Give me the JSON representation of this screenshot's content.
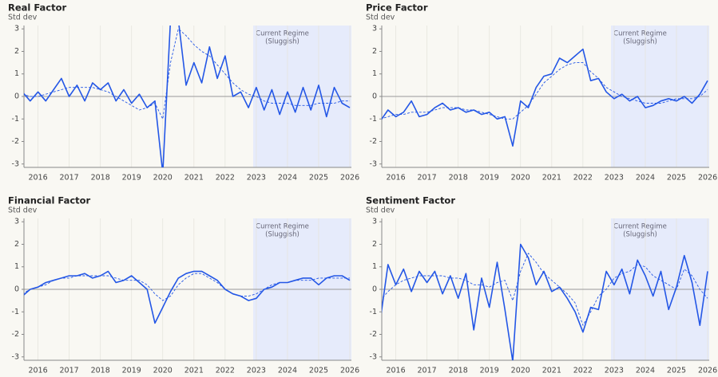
{
  "chart_data": [
    {
      "type": "line",
      "title": "Real Factor",
      "y_label": "Std dev",
      "x": [
        2015.5,
        2015.75,
        2016,
        2016.25,
        2016.5,
        2016.75,
        2017,
        2017.25,
        2017.5,
        2017.75,
        2018,
        2018.25,
        2018.5,
        2018.75,
        2019,
        2019.25,
        2019.5,
        2019.75,
        2020,
        2020.25,
        2020.5,
        2020.75,
        2021,
        2021.25,
        2021.5,
        2021.75,
        2022,
        2022.25,
        2022.5,
        2022.75,
        2023,
        2023.25,
        2023.5,
        2023.75,
        2024,
        2024.25,
        2024.5,
        2024.75,
        2025,
        2025.25,
        2025.5,
        2025.75,
        2026
      ],
      "series": [
        {
          "color": "#2457e6",
          "line_style": "solid",
          "values": [
            0.2,
            -0.2,
            0.2,
            -0.2,
            0.3,
            0.8,
            0.0,
            0.5,
            -0.2,
            0.6,
            0.3,
            0.6,
            -0.2,
            0.3,
            -0.3,
            0.1,
            -0.5,
            -0.2,
            -3.4,
            3.4,
            3.4,
            0.5,
            1.5,
            0.6,
            2.2,
            0.8,
            1.8,
            0.0,
            0.2,
            -0.5,
            0.4,
            -0.6,
            0.3,
            -0.8,
            0.2,
            -0.7,
            0.4,
            -0.6,
            0.5,
            -0.9,
            0.4,
            -0.3,
            -0.5
          ]
        },
        {
          "color": "#2457e6",
          "line_style": "dashed",
          "values": [
            0.1,
            0.0,
            0.0,
            0.1,
            0.2,
            0.3,
            0.4,
            0.4,
            0.4,
            0.4,
            0.3,
            0.2,
            0.0,
            -0.2,
            -0.4,
            -0.6,
            -0.5,
            -0.3,
            -1.0,
            1.5,
            3.0,
            2.7,
            2.3,
            2.0,
            1.8,
            1.4,
            1.0,
            0.6,
            0.3,
            0.1,
            0.0,
            -0.2,
            -0.3,
            -0.3,
            -0.3,
            -0.4,
            -0.4,
            -0.4,
            -0.3,
            -0.3,
            -0.3,
            -0.2,
            -0.2
          ]
        }
      ],
      "xlim": [
        2015.55,
        2026.05
      ],
      "xticks": [
        2016,
        2017,
        2018,
        2019,
        2020,
        2021,
        2022,
        2023,
        2024,
        2025,
        2026
      ],
      "ylim": [
        -3.15,
        3.15
      ],
      "yticks": [
        -3,
        -2,
        -1,
        0,
        1,
        2,
        3
      ],
      "hline": 0,
      "region": {
        "xlim": [
          2022.9,
          2026.05
        ],
        "color": "#e6ebfb",
        "label": [
          "Current Regime",
          "(Sluggish)"
        ]
      }
    },
    {
      "type": "line",
      "title": "Price Factor",
      "y_label": "Std dev",
      "x": [
        2015.5,
        2015.75,
        2016,
        2016.25,
        2016.5,
        2016.75,
        2017,
        2017.25,
        2017.5,
        2017.75,
        2018,
        2018.25,
        2018.5,
        2018.75,
        2019,
        2019.25,
        2019.5,
        2019.75,
        2020,
        2020.25,
        2020.5,
        2020.75,
        2021,
        2021.25,
        2021.5,
        2021.75,
        2022,
        2022.25,
        2022.5,
        2022.75,
        2023,
        2023.25,
        2023.5,
        2023.75,
        2024,
        2024.25,
        2024.5,
        2024.75,
        2025,
        2025.25,
        2025.5,
        2025.75,
        2026
      ],
      "series": [
        {
          "color": "#2457e6",
          "line_style": "solid",
          "values": [
            -1.1,
            -0.6,
            -0.9,
            -0.7,
            -0.2,
            -0.9,
            -0.8,
            -0.5,
            -0.3,
            -0.6,
            -0.5,
            -0.7,
            -0.6,
            -0.8,
            -0.7,
            -1.0,
            -0.9,
            -2.2,
            -0.2,
            -0.5,
            0.4,
            0.9,
            1.0,
            1.7,
            1.5,
            1.8,
            2.1,
            0.7,
            0.8,
            0.2,
            -0.1,
            0.1,
            -0.2,
            0.0,
            -0.5,
            -0.4,
            -0.2,
            -0.1,
            -0.2,
            0.0,
            -0.3,
            0.1,
            0.7
          ]
        },
        {
          "color": "#2457e6",
          "line_style": "dashed",
          "values": [
            -1.0,
            -0.9,
            -0.8,
            -0.8,
            -0.7,
            -0.7,
            -0.7,
            -0.6,
            -0.5,
            -0.5,
            -0.5,
            -0.6,
            -0.6,
            -0.7,
            -0.8,
            -0.9,
            -1.0,
            -1.0,
            -0.7,
            -0.4,
            0.1,
            0.6,
            0.9,
            1.2,
            1.4,
            1.5,
            1.5,
            1.1,
            0.8,
            0.4,
            0.2,
            0.0,
            -0.1,
            -0.2,
            -0.3,
            -0.3,
            -0.3,
            -0.2,
            -0.1,
            -0.1,
            -0.1,
            0.0,
            0.3
          ]
        }
      ],
      "xlim": [
        2015.55,
        2026.05
      ],
      "xticks": [
        2016,
        2017,
        2018,
        2019,
        2020,
        2021,
        2022,
        2023,
        2024,
        2025,
        2026
      ],
      "ylim": [
        -3.15,
        3.15
      ],
      "yticks": [
        -3,
        -2,
        -1,
        0,
        1,
        2,
        3
      ],
      "hline": 0,
      "region": {
        "xlim": [
          2022.9,
          2026.05
        ],
        "color": "#e6ebfb",
        "label": [
          "Current Regime",
          "(Sluggish)"
        ]
      }
    },
    {
      "type": "line",
      "title": "Financial Factor",
      "y_label": "Std dev",
      "x": [
        2015.5,
        2015.75,
        2016,
        2016.25,
        2016.5,
        2016.75,
        2017,
        2017.25,
        2017.5,
        2017.75,
        2018,
        2018.25,
        2018.5,
        2018.75,
        2019,
        2019.25,
        2019.5,
        2019.75,
        2020,
        2020.25,
        2020.5,
        2020.75,
        2021,
        2021.25,
        2021.5,
        2021.75,
        2022,
        2022.25,
        2022.5,
        2022.75,
        2023,
        2023.25,
        2023.5,
        2023.75,
        2024,
        2024.25,
        2024.5,
        2024.75,
        2025,
        2025.25,
        2025.5,
        2025.75,
        2026
      ],
      "series": [
        {
          "color": "#2457e6",
          "line_style": "solid",
          "values": [
            -0.3,
            0.0,
            0.1,
            0.3,
            0.4,
            0.5,
            0.6,
            0.6,
            0.7,
            0.5,
            0.6,
            0.8,
            0.3,
            0.4,
            0.6,
            0.3,
            0.0,
            -1.5,
            -0.8,
            -0.1,
            0.5,
            0.7,
            0.8,
            0.8,
            0.6,
            0.4,
            0.0,
            -0.2,
            -0.3,
            -0.5,
            -0.4,
            0.0,
            0.1,
            0.3,
            0.3,
            0.4,
            0.5,
            0.5,
            0.2,
            0.5,
            0.6,
            0.6,
            0.4
          ]
        },
        {
          "color": "#2457e6",
          "line_style": "dashed",
          "values": [
            -0.2,
            0.0,
            0.1,
            0.2,
            0.4,
            0.5,
            0.5,
            0.6,
            0.6,
            0.6,
            0.6,
            0.6,
            0.5,
            0.4,
            0.4,
            0.4,
            0.2,
            -0.2,
            -0.5,
            -0.3,
            0.2,
            0.5,
            0.7,
            0.7,
            0.5,
            0.3,
            0.0,
            -0.2,
            -0.3,
            -0.3,
            -0.2,
            0.0,
            0.2,
            0.3,
            0.3,
            0.4,
            0.4,
            0.4,
            0.5,
            0.5,
            0.5,
            0.5,
            0.5
          ]
        }
      ],
      "xlim": [
        2015.55,
        2026.05
      ],
      "xticks": [
        2016,
        2017,
        2018,
        2019,
        2020,
        2021,
        2022,
        2023,
        2024,
        2025,
        2026
      ],
      "ylim": [
        -3.15,
        3.15
      ],
      "yticks": [
        -3,
        -2,
        -1,
        0,
        1,
        2,
        3
      ],
      "hline": 0,
      "region": {
        "xlim": [
          2022.9,
          2026.05
        ],
        "color": "#e6ebfb",
        "label": [
          "Current Regime",
          "(Sluggish)"
        ]
      }
    },
    {
      "type": "line",
      "title": "Sentiment Factor",
      "y_label": "Std dev",
      "x": [
        2015.5,
        2015.75,
        2016,
        2016.25,
        2016.5,
        2016.75,
        2017,
        2017.25,
        2017.5,
        2017.75,
        2018,
        2018.25,
        2018.5,
        2018.75,
        2019,
        2019.25,
        2019.5,
        2019.75,
        2020,
        2020.25,
        2020.5,
        2020.75,
        2021,
        2021.25,
        2021.5,
        2021.75,
        2022,
        2022.25,
        2022.5,
        2022.75,
        2023,
        2023.25,
        2023.5,
        2023.75,
        2024,
        2024.25,
        2024.5,
        2024.75,
        2025,
        2025.25,
        2025.5,
        2025.75,
        2026
      ],
      "series": [
        {
          "color": "#2457e6",
          "line_style": "solid",
          "values": [
            -1.4,
            1.1,
            0.2,
            0.9,
            -0.1,
            0.8,
            0.3,
            0.8,
            -0.2,
            0.6,
            -0.4,
            0.7,
            -1.8,
            0.5,
            -0.8,
            1.2,
            -0.9,
            -3.2,
            2.0,
            1.4,
            0.2,
            0.8,
            -0.1,
            0.1,
            -0.4,
            -1.0,
            -1.9,
            -0.8,
            -0.9,
            0.8,
            0.2,
            0.9,
            -0.2,
            1.3,
            0.6,
            -0.3,
            0.8,
            -0.9,
            0.1,
            1.5,
            0.3,
            -1.6,
            0.8
          ]
        },
        {
          "color": "#2457e6",
          "line_style": "dashed",
          "values": [
            -0.5,
            -0.1,
            0.2,
            0.4,
            0.5,
            0.6,
            0.6,
            0.6,
            0.6,
            0.5,
            0.5,
            0.4,
            0.2,
            0.2,
            0.1,
            0.3,
            0.4,
            -0.5,
            0.8,
            1.6,
            1.2,
            0.7,
            0.4,
            0.1,
            -0.2,
            -0.6,
            -1.6,
            -1.0,
            -0.3,
            0.0,
            0.5,
            0.7,
            0.8,
            1.1,
            1.0,
            0.6,
            0.4,
            0.2,
            0.0,
            0.9,
            0.6,
            0.0,
            -0.4
          ]
        }
      ],
      "xlim": [
        2015.55,
        2026.05
      ],
      "xticks": [
        2016,
        2017,
        2018,
        2019,
        2020,
        2021,
        2022,
        2023,
        2024,
        2025,
        2026
      ],
      "ylim": [
        -3.15,
        3.15
      ],
      "yticks": [
        -3,
        -2,
        -1,
        0,
        1,
        2,
        3
      ],
      "hline": 0,
      "region": {
        "xlim": [
          2022.9,
          2026.05
        ],
        "color": "#e6ebfb",
        "label": [
          "Current Regime",
          "(Sluggish)"
        ]
      }
    }
  ]
}
